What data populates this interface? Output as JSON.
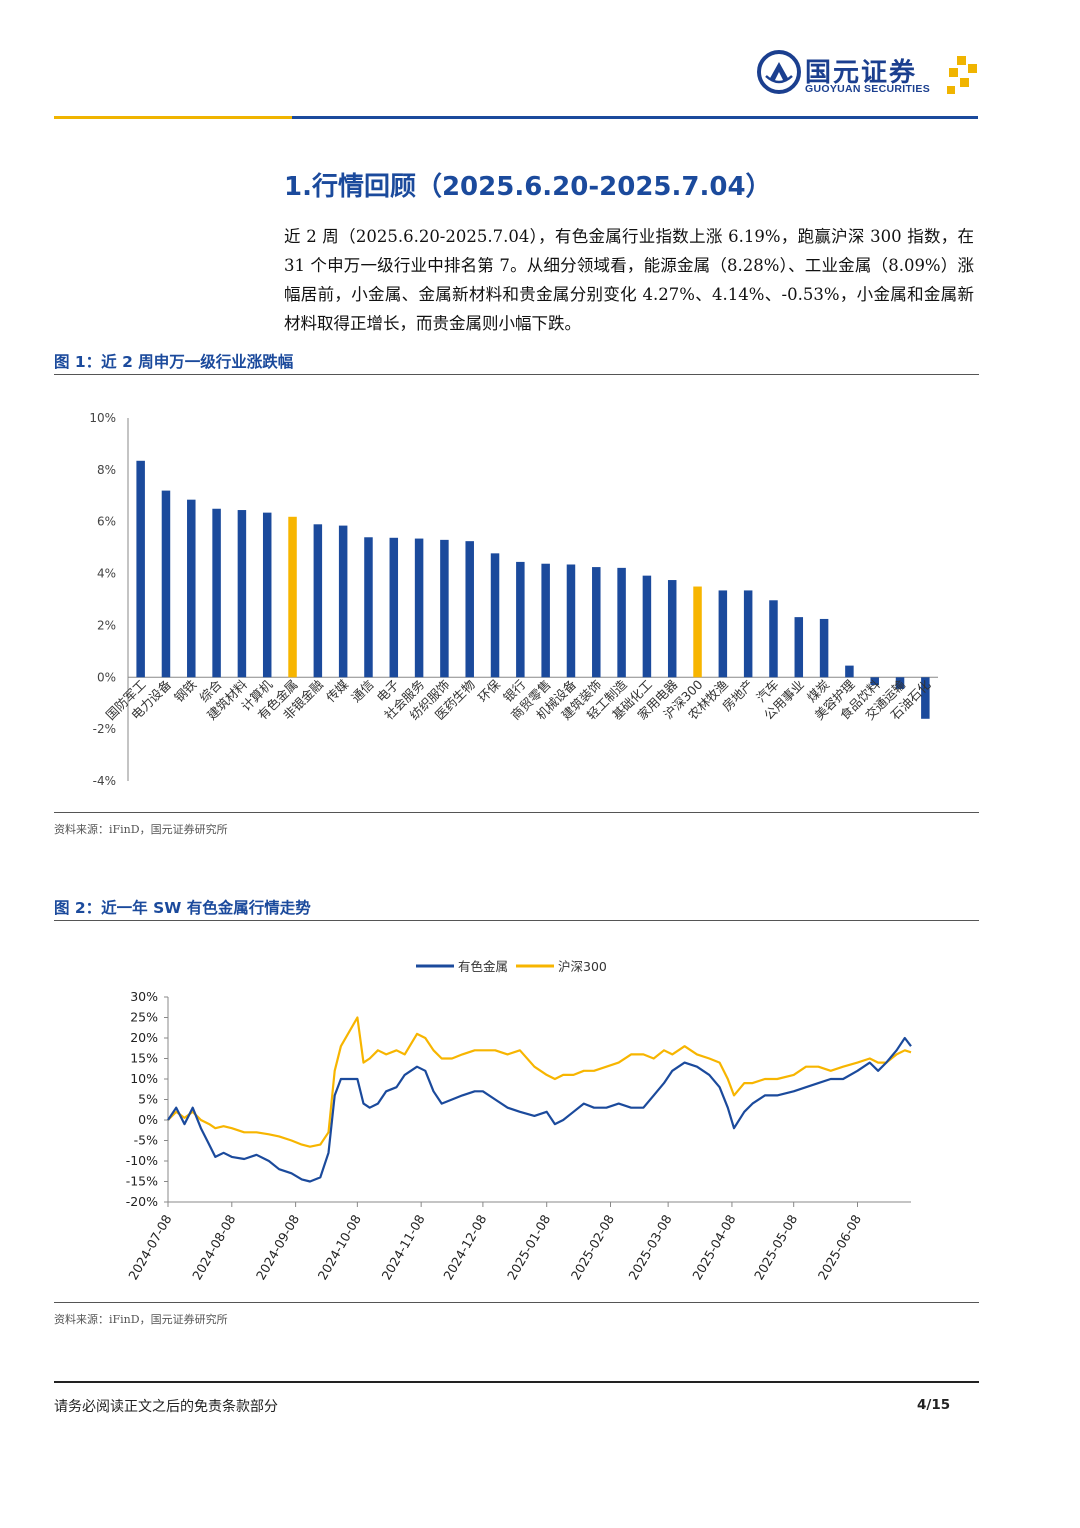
{
  "header": {
    "logo_cn": "国元证券",
    "logo_en": "GUOYUAN SECURITIES",
    "brand_blue": "#1b4a9c",
    "brand_gold": "#f0b400"
  },
  "section": {
    "title": "1.行情回顾（2025.6.20-2025.7.04）",
    "paragraph": "近 2 周（2025.6.20-2025.7.04），有色金属行业指数上涨 6.19%，跑赢沪深 300 指数，在 31 个申万一级行业中排名第 7。从细分领域看，能源金属（8.28%）、工业金属（8.09%）涨幅居前，小金属、金属新材料和贵金属分别变化 4.27%、4.14%、-0.53%，小金属和金属新材料取得正增长，而贵金属则小幅下跌。"
  },
  "figure1": {
    "title": "图 1：近 2 周申万一级行业涨跌幅",
    "source": "资料来源：iFinD，国元证券研究所"
  },
  "figure2": {
    "title": "图 2：近一年 SW 有色金属行情走势",
    "source": "资料来源：iFinD，国元证券研究所"
  },
  "chart_data": [
    {
      "type": "bar",
      "title": "",
      "categories": [
        "国防军工",
        "电力设备",
        "钢铁",
        "综合",
        "建筑材料",
        "计算机",
        "有色金属",
        "非银金融",
        "传媒",
        "通信",
        "电子",
        "社会服务",
        "纺织服饰",
        "医药生物",
        "环保",
        "银行",
        "商贸零售",
        "机械设备",
        "建筑装饰",
        "轻工制造",
        "基础化工",
        "家用电器",
        "沪深300",
        "农林牧渔",
        "房地产",
        "汽车",
        "公用事业",
        "煤炭",
        "美容护理",
        "食品饮料",
        "交通运输",
        "石油石化"
      ],
      "values": [
        8.35,
        7.2,
        6.85,
        6.5,
        6.45,
        6.35,
        6.19,
        5.9,
        5.85,
        5.4,
        5.38,
        5.35,
        5.3,
        5.25,
        4.78,
        4.45,
        4.38,
        4.35,
        4.25,
        4.22,
        3.92,
        3.75,
        3.5,
        3.35,
        3.35,
        2.97,
        2.32,
        2.25,
        0.45,
        -0.3,
        -0.45,
        -1.6
      ],
      "highlight": [
        "有色金属",
        "沪深300"
      ],
      "yticks": [
        "10%",
        "8%",
        "6%",
        "4%",
        "2%",
        "0%",
        "-2%",
        "-4%"
      ],
      "ylim": [
        -4,
        10
      ],
      "colors": {
        "default": "#1b4a9c",
        "highlight": "#f7b500"
      }
    },
    {
      "type": "line",
      "title": "",
      "xticks": [
        "2024-07-08",
        "2024-08-08",
        "2024-09-08",
        "2024-10-08",
        "2024-11-08",
        "2024-12-08",
        "2025-01-08",
        "2025-02-08",
        "2025-03-08",
        "2025-04-08",
        "2025-05-08",
        "2025-06-08"
      ],
      "yticks": [
        "30%",
        "25%",
        "20%",
        "15%",
        "10%",
        "5%",
        "0%",
        "-5%",
        "-10%",
        "-15%",
        "-20%"
      ],
      "ylim": [
        -20,
        30
      ],
      "series": [
        {
          "name": "有色金属",
          "color": "#1b4a9c",
          "points": [
            [
              "2024-07-08",
              0
            ],
            [
              "2024-07-12",
              3
            ],
            [
              "2024-07-16",
              -1
            ],
            [
              "2024-07-20",
              3
            ],
            [
              "2024-07-24",
              -2
            ],
            [
              "2024-07-28",
              -6
            ],
            [
              "2024-07-31",
              -9
            ],
            [
              "2024-08-04",
              -8
            ],
            [
              "2024-08-08",
              -9
            ],
            [
              "2024-08-14",
              -9.5
            ],
            [
              "2024-08-20",
              -8.5
            ],
            [
              "2024-08-26",
              -10
            ],
            [
              "2024-08-31",
              -12
            ],
            [
              "2024-09-06",
              -13
            ],
            [
              "2024-09-11",
              -14.5
            ],
            [
              "2024-09-15",
              -15
            ],
            [
              "2024-09-20",
              -14
            ],
            [
              "2024-09-24",
              -8
            ],
            [
              "2024-09-27",
              6
            ],
            [
              "2024-09-30",
              10
            ],
            [
              "2024-10-08",
              10
            ],
            [
              "2024-10-11",
              4
            ],
            [
              "2024-10-14",
              3
            ],
            [
              "2024-10-18",
              4
            ],
            [
              "2024-10-22",
              7
            ],
            [
              "2024-10-27",
              8
            ],
            [
              "2024-10-31",
              11
            ],
            [
              "2024-11-06",
              13
            ],
            [
              "2024-11-10",
              12
            ],
            [
              "2024-11-14",
              7
            ],
            [
              "2024-11-18",
              4
            ],
            [
              "2024-11-23",
              5
            ],
            [
              "2024-11-28",
              6
            ],
            [
              "2024-12-04",
              7
            ],
            [
              "2024-12-08",
              7
            ],
            [
              "2024-12-14",
              5
            ],
            [
              "2024-12-20",
              3
            ],
            [
              "2024-12-26",
              2
            ],
            [
              "2025-01-02",
              1
            ],
            [
              "2025-01-08",
              2
            ],
            [
              "2025-01-12",
              -1
            ],
            [
              "2025-01-16",
              0
            ],
            [
              "2025-01-21",
              2
            ],
            [
              "2025-01-26",
              4
            ],
            [
              "2025-01-31",
              3
            ],
            [
              "2025-02-06",
              3
            ],
            [
              "2025-02-12",
              4
            ],
            [
              "2025-02-18",
              3
            ],
            [
              "2025-02-24",
              3
            ],
            [
              "2025-03-01",
              6
            ],
            [
              "2025-03-06",
              9
            ],
            [
              "2025-03-10",
              12
            ],
            [
              "2025-03-16",
              14
            ],
            [
              "2025-03-22",
              13
            ],
            [
              "2025-03-28",
              11
            ],
            [
              "2025-04-02",
              8
            ],
            [
              "2025-04-06",
              3
            ],
            [
              "2025-04-09",
              -2
            ],
            [
              "2025-04-14",
              2
            ],
            [
              "2025-04-18",
              4
            ],
            [
              "2025-04-24",
              6
            ],
            [
              "2025-04-30",
              6
            ],
            [
              "2025-05-08",
              7
            ],
            [
              "2025-05-14",
              8
            ],
            [
              "2025-05-20",
              9
            ],
            [
              "2025-05-26",
              10
            ],
            [
              "2025-06-01",
              10
            ],
            [
              "2025-06-08",
              12
            ],
            [
              "2025-06-14",
              14
            ],
            [
              "2025-06-18",
              12
            ],
            [
              "2025-06-22",
              14
            ],
            [
              "2025-06-27",
              17
            ],
            [
              "2025-07-01",
              20
            ],
            [
              "2025-07-04",
              18
            ]
          ]
        },
        {
          "name": "沪深300",
          "color": "#f7b500",
          "points": [
            [
              "2024-07-08",
              0
            ],
            [
              "2024-07-12",
              2
            ],
            [
              "2024-07-16",
              0.5
            ],
            [
              "2024-07-20",
              2
            ],
            [
              "2024-07-24",
              0
            ],
            [
              "2024-07-28",
              -1
            ],
            [
              "2024-07-31",
              -2
            ],
            [
              "2024-08-04",
              -1.5
            ],
            [
              "2024-08-08",
              -2
            ],
            [
              "2024-08-14",
              -3
            ],
            [
              "2024-08-20",
              -3
            ],
            [
              "2024-08-26",
              -3.5
            ],
            [
              "2024-08-31",
              -4
            ],
            [
              "2024-09-06",
              -5
            ],
            [
              "2024-09-11",
              -6
            ],
            [
              "2024-09-15",
              -6.5
            ],
            [
              "2024-09-20",
              -6
            ],
            [
              "2024-09-24",
              -3
            ],
            [
              "2024-09-27",
              12
            ],
            [
              "2024-09-30",
              18
            ],
            [
              "2024-10-08",
              25
            ],
            [
              "2024-10-11",
              14
            ],
            [
              "2024-10-14",
              15
            ],
            [
              "2024-10-18",
              17
            ],
            [
              "2024-10-22",
              16
            ],
            [
              "2024-10-27",
              17
            ],
            [
              "2024-10-31",
              16
            ],
            [
              "2024-11-06",
              21
            ],
            [
              "2024-11-10",
              20
            ],
            [
              "2024-11-14",
              17
            ],
            [
              "2024-11-18",
              15
            ],
            [
              "2024-11-23",
              15
            ],
            [
              "2024-11-28",
              16
            ],
            [
              "2024-12-04",
              17
            ],
            [
              "2024-12-08",
              17
            ],
            [
              "2024-12-14",
              17
            ],
            [
              "2024-12-20",
              16
            ],
            [
              "2024-12-26",
              17
            ],
            [
              "2025-01-02",
              13
            ],
            [
              "2025-01-08",
              11
            ],
            [
              "2025-01-12",
              10
            ],
            [
              "2025-01-16",
              11
            ],
            [
              "2025-01-21",
              11
            ],
            [
              "2025-01-26",
              12
            ],
            [
              "2025-01-31",
              12
            ],
            [
              "2025-02-06",
              13
            ],
            [
              "2025-02-12",
              14
            ],
            [
              "2025-02-18",
              16
            ],
            [
              "2025-02-24",
              16
            ],
            [
              "2025-03-01",
              15
            ],
            [
              "2025-03-06",
              17
            ],
            [
              "2025-03-10",
              16
            ],
            [
              "2025-03-16",
              18
            ],
            [
              "2025-03-22",
              16
            ],
            [
              "2025-03-28",
              15
            ],
            [
              "2025-04-02",
              14
            ],
            [
              "2025-04-06",
              10
            ],
            [
              "2025-04-09",
              6
            ],
            [
              "2025-04-14",
              9
            ],
            [
              "2025-04-18",
              9
            ],
            [
              "2025-04-24",
              10
            ],
            [
              "2025-04-30",
              10
            ],
            [
              "2025-05-08",
              11
            ],
            [
              "2025-05-14",
              13
            ],
            [
              "2025-05-20",
              13
            ],
            [
              "2025-05-26",
              12
            ],
            [
              "2025-06-01",
              13
            ],
            [
              "2025-06-08",
              14
            ],
            [
              "2025-06-14",
              15
            ],
            [
              "2025-06-18",
              14
            ],
            [
              "2025-06-22",
              14
            ],
            [
              "2025-06-27",
              16
            ],
            [
              "2025-07-01",
              17
            ],
            [
              "2025-07-04",
              16.5
            ]
          ]
        }
      ]
    }
  ],
  "footer": {
    "disclaimer": "请务必阅读正文之后的免责条款部分",
    "page": "4/15"
  }
}
